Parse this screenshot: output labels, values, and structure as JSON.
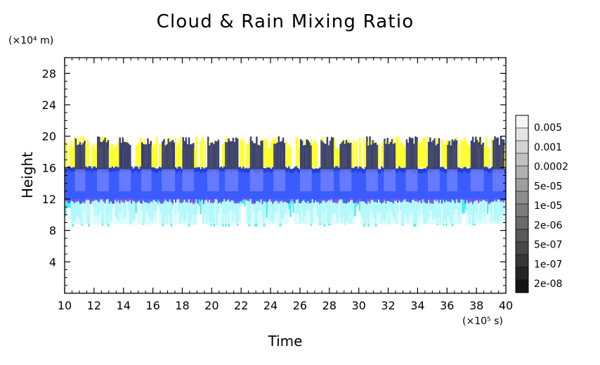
{
  "chart_data": {
    "type": "heatmap",
    "title": "Cloud & Rain Mixing Ratio",
    "xlabel": "Time",
    "ylabel": "Height",
    "x_unit": "(×10⁵ s)",
    "y_unit": "(×10⁴ m)",
    "xlim": [
      10,
      40
    ],
    "ylim": [
      0,
      30
    ],
    "x_ticks": [
      "10",
      "12",
      "14",
      "16",
      "18",
      "20",
      "22",
      "24",
      "26",
      "28",
      "30",
      "32",
      "34",
      "36",
      "38",
      "40"
    ],
    "y_ticks": [
      "4",
      "8",
      "12",
      "16",
      "20",
      "24",
      "28"
    ],
    "colorbar_labels": [
      "0.005",
      "0.001",
      "0.0002",
      "5e-05",
      "1e-05",
      "2e-06",
      "5e-07",
      "1e-07",
      "2e-08"
    ],
    "layers": [
      {
        "name": "yellow",
        "color": "#ffff33",
        "height_range": [
          16,
          20
        ]
      },
      {
        "name": "blue",
        "color": "#3a5cff",
        "height_range": [
          12,
          16
        ]
      },
      {
        "name": "cyan",
        "color": "#33f0f5",
        "height_range": [
          8.5,
          12
        ]
      }
    ],
    "convective_towers_time": [
      11,
      12.5,
      14,
      15.5,
      17,
      18.3,
      20,
      21.3,
      23,
      24.5,
      26.3,
      27.8,
      29,
      30.8,
      32,
      33.5,
      35,
      36.3,
      38,
      39.5
    ],
    "tower_top_height": 20
  }
}
